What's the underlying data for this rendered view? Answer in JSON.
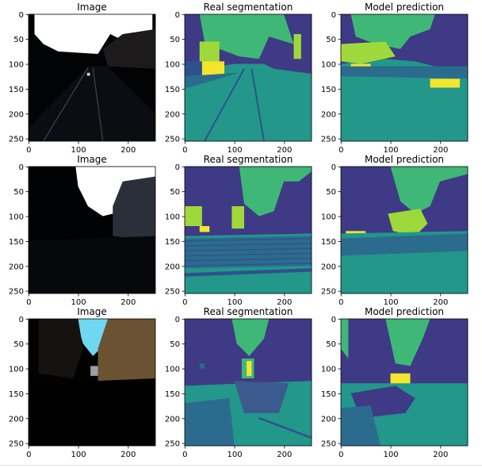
{
  "chart_data": {
    "type": "heatmap",
    "layout": {
      "rows": 3,
      "cols": 3
    },
    "xlim": [
      0,
      255
    ],
    "ylim": [
      0,
      255
    ],
    "xticks": [
      0,
      100,
      200
    ],
    "yticks": [
      0,
      50,
      100,
      150,
      200,
      250
    ],
    "xtick_labels": [
      "0",
      "100",
      "200"
    ],
    "ytick_labels": [
      "0",
      "50",
      "100",
      "150",
      "200",
      "250"
    ],
    "panels": [
      {
        "title": "Image",
        "kind": "photo",
        "scene": "road-dark"
      },
      {
        "title": "Real segmentation",
        "kind": "mask",
        "scene": "road-dark"
      },
      {
        "title": "Model prediction",
        "kind": "prediction",
        "scene": "road-dark"
      },
      {
        "title": "Image",
        "kind": "photo",
        "scene": "cobblestone"
      },
      {
        "title": "Real segmentation",
        "kind": "mask",
        "scene": "cobblestone"
      },
      {
        "title": "Model prediction",
        "kind": "prediction",
        "scene": "cobblestone"
      },
      {
        "title": "Image",
        "kind": "photo",
        "scene": "street-buildings"
      },
      {
        "title": "Real segmentation",
        "kind": "mask",
        "scene": "street-buildings"
      },
      {
        "title": "Model prediction",
        "kind": "prediction",
        "scene": "street-buildings"
      }
    ],
    "class_colors": {
      "building": "#3e3a85",
      "sky": "#3fb777",
      "road": "#22978a",
      "road_dark": "#2b6c8e",
      "marking": "#30508c",
      "vegetation": "#9fd83a",
      "sign": "#f2e62c",
      "vehicle": "#3b5a8d"
    }
  }
}
